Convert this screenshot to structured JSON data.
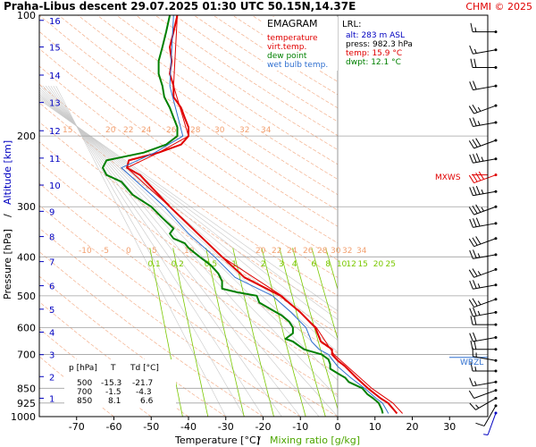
{
  "header": {
    "title": "Praha-Libus  descent  29.07.2025 01:30 UTC  50.15N,14.37E",
    "copyright": "CHMI © 2025"
  },
  "diagram_label": "EMAGRAM",
  "legend": [
    {
      "label": "temperature",
      "color": "#e00000"
    },
    {
      "label": "virt.temp.",
      "color": "#e00000"
    },
    {
      "label": "dew point",
      "color": "#008000"
    },
    {
      "label": "wet bulb temp.",
      "color": "#3070d0"
    }
  ],
  "lrl": {
    "heading": "LRL:",
    "lines": [
      {
        "text": "alt: 283 m ASL",
        "color": "#0000c0"
      },
      {
        "text": "press: 982.3 hPa",
        "color": "#000000"
      },
      {
        "text": "temp: 15.9 °C",
        "color": "#e00000"
      },
      {
        "text": "dwpt: 12.1 °C",
        "color": "#008000"
      }
    ]
  },
  "level_markers": {
    "mxws": "MXWS",
    "wbzl": "WBZL"
  },
  "table": {
    "headers": [
      "p [hPa]",
      "T",
      "Td [°C]"
    ],
    "rows": [
      [
        "500",
        "-15.3",
        "-21.7"
      ],
      [
        "700",
        "-1.5",
        "-4.3"
      ],
      [
        "850",
        "8.1",
        "6.6"
      ]
    ]
  },
  "axis_titles": {
    "x_temperature": "Temperature [°C]",
    "x_separator": "/",
    "x_mixing": "Mixing ratio [g/kg]",
    "y_pressure": "Pressure [hPa]",
    "y_separator": "/",
    "y_altitude": "Altitude [km]"
  },
  "chart_data": {
    "type": "line",
    "title": "Praha-Libus  descent  29.07.2025 01:30 UTC  50.15N,14.37E",
    "xlabel": "Temperature [°C] / Mixing ratio [g/kg]",
    "ylabel": "Pressure [hPa] / Altitude [km]",
    "xlim": [
      -80,
      40
    ],
    "ylim": [
      1000,
      100
    ],
    "y_scale": "log",
    "x_ticks": [
      -70,
      -60,
      -50,
      -40,
      -30,
      -20,
      -10,
      0,
      10,
      20,
      30
    ],
    "pressure_ticks": [
      100,
      200,
      300,
      400,
      500,
      600,
      700,
      850,
      925,
      1000
    ],
    "altitude_ticks": [
      {
        "km": "1",
        "p": 900
      },
      {
        "km": "2",
        "p": 795
      },
      {
        "km": "3",
        "p": 701
      },
      {
        "km": "4",
        "p": 616
      },
      {
        "km": "5",
        "p": 540
      },
      {
        "km": "6",
        "p": 472
      },
      {
        "km": "7",
        "p": 411
      },
      {
        "km": "8",
        "p": 356
      },
      {
        "km": "9",
        "p": 308
      },
      {
        "km": "10",
        "p": 265
      },
      {
        "km": "11",
        "p": 227
      },
      {
        "km": "12",
        "p": 194
      },
      {
        "km": "13",
        "p": 165
      },
      {
        "km": "14",
        "p": 141
      },
      {
        "km": "15",
        "p": 120
      },
      {
        "km": "16",
        "p": 103
      }
    ],
    "dry_adiabat_labels_200": [
      "15",
      "20",
      "22",
      "24",
      "26",
      "28",
      "30",
      "32",
      "34"
    ],
    "dry_adiabat_labels_400": [
      "-10",
      "-5",
      "0",
      "5",
      "10",
      "20",
      "22",
      "24",
      "26",
      "28",
      "30",
      "32",
      "34"
    ],
    "mixing_ratio_labels": [
      "0.1",
      "0.2",
      "0.5",
      "1",
      "2",
      "3",
      "4",
      "6",
      "8",
      "10",
      "12",
      "15",
      "20",
      "25"
    ],
    "series": [
      {
        "name": "temperature",
        "color": "#e00000",
        "points": [
          [
            100,
            -43
          ],
          [
            110,
            -44
          ],
          [
            120,
            -45
          ],
          [
            130,
            -44.5
          ],
          [
            140,
            -45
          ],
          [
            150,
            -44
          ],
          [
            160,
            -44
          ],
          [
            170,
            -42
          ],
          [
            180,
            -41
          ],
          [
            190,
            -40
          ],
          [
            200,
            -40
          ],
          [
            210,
            -42
          ],
          [
            220,
            -48
          ],
          [
            230,
            -56
          ],
          [
            240,
            -56.5
          ],
          [
            250,
            -53
          ],
          [
            280,
            -48
          ],
          [
            300,
            -45
          ],
          [
            350,
            -37.5
          ],
          [
            400,
            -31
          ],
          [
            450,
            -25
          ],
          [
            500,
            -15.3
          ],
          [
            550,
            -10
          ],
          [
            600,
            -6
          ],
          [
            650,
            -4.5
          ],
          [
            680,
            -1.5
          ],
          [
            700,
            -1.5
          ],
          [
            725,
            0
          ],
          [
            750,
            2
          ],
          [
            800,
            5
          ],
          [
            850,
            8.1
          ],
          [
            900,
            11.5
          ],
          [
            925,
            13.5
          ],
          [
            960,
            15
          ],
          [
            982.3,
            15.9
          ]
        ]
      },
      {
        "name": "virt.temp.",
        "color": "#e00000",
        "points": [
          [
            100,
            -43
          ],
          [
            150,
            -44
          ],
          [
            200,
            -40
          ],
          [
            220,
            -48
          ],
          [
            240,
            -56.5
          ],
          [
            300,
            -45
          ],
          [
            400,
            -31
          ],
          [
            500,
            -15
          ],
          [
            600,
            -5.7
          ],
          [
            700,
            -1
          ],
          [
            850,
            9.1
          ],
          [
            925,
            14.8
          ],
          [
            982.3,
            17.4
          ]
        ]
      },
      {
        "name": "dew point",
        "color": "#008000",
        "points": [
          [
            100,
            -45
          ],
          [
            110,
            -46
          ],
          [
            120,
            -47
          ],
          [
            130,
            -48
          ],
          [
            140,
            -48
          ],
          [
            150,
            -47
          ],
          [
            160,
            -46.5
          ],
          [
            170,
            -45
          ],
          [
            180,
            -44
          ],
          [
            190,
            -43
          ],
          [
            200,
            -43
          ],
          [
            210,
            -46
          ],
          [
            220,
            -52
          ],
          [
            230,
            -62
          ],
          [
            240,
            -63
          ],
          [
            250,
            -62
          ],
          [
            260,
            -58
          ],
          [
            280,
            -55
          ],
          [
            300,
            -50
          ],
          [
            320,
            -47
          ],
          [
            340,
            -44
          ],
          [
            350,
            -45
          ],
          [
            360,
            -44
          ],
          [
            370,
            -41
          ],
          [
            380,
            -40
          ],
          [
            400,
            -37
          ],
          [
            420,
            -34
          ],
          [
            440,
            -32
          ],
          [
            460,
            -31
          ],
          [
            480,
            -31
          ],
          [
            490,
            -27
          ],
          [
            500,
            -21.7
          ],
          [
            520,
            -21
          ],
          [
            540,
            -18
          ],
          [
            560,
            -15
          ],
          [
            580,
            -13
          ],
          [
            600,
            -12
          ],
          [
            620,
            -12
          ],
          [
            640,
            -14
          ],
          [
            650,
            -12
          ],
          [
            660,
            -11
          ],
          [
            670,
            -10
          ],
          [
            680,
            -9
          ],
          [
            700,
            -4.3
          ],
          [
            720,
            -2.5
          ],
          [
            740,
            -2
          ],
          [
            760,
            -2
          ],
          [
            780,
            0
          ],
          [
            800,
            2
          ],
          [
            820,
            3
          ],
          [
            850,
            6.6
          ],
          [
            880,
            8
          ],
          [
            900,
            9.5
          ],
          [
            925,
            11
          ],
          [
            960,
            11.8
          ],
          [
            982.3,
            12.1
          ]
        ]
      },
      {
        "name": "wet bulb temp.",
        "color": "#3070d0",
        "points": [
          [
            100,
            -44
          ],
          [
            150,
            -45
          ],
          [
            200,
            -41.5
          ],
          [
            220,
            -49
          ],
          [
            240,
            -58
          ],
          [
            280,
            -50
          ],
          [
            300,
            -46.5
          ],
          [
            350,
            -40
          ],
          [
            400,
            -33
          ],
          [
            450,
            -27.5
          ],
          [
            500,
            -17.5
          ],
          [
            550,
            -12.5
          ],
          [
            600,
            -8.5
          ],
          [
            650,
            -7
          ],
          [
            680,
            -5
          ],
          [
            700,
            -2.5
          ],
          [
            750,
            0
          ],
          [
            800,
            3.5
          ],
          [
            850,
            7.2
          ],
          [
            900,
            10.3
          ],
          [
            925,
            12
          ],
          [
            960,
            13
          ],
          [
            982.3,
            13.6
          ]
        ]
      }
    ],
    "mixing_ratio_line_color": "#7bc800",
    "dry_adiabat_color": "#f4b08c",
    "moist_adiabat_color": "#c8c8c8",
    "wind_barbs": [
      {
        "p": 980,
        "dir": 200,
        "speed": 5,
        "color": "#0000c0"
      },
      {
        "p": 940,
        "dir": 210,
        "speed": 10
      },
      {
        "p": 900,
        "dir": 240,
        "speed": 15
      },
      {
        "p": 860,
        "dir": 250,
        "speed": 10
      },
      {
        "p": 820,
        "dir": 260,
        "speed": 15
      },
      {
        "p": 770,
        "dir": 270,
        "speed": 15
      },
      {
        "p": 725,
        "dir": 280,
        "speed": 15
      },
      {
        "p": 680,
        "dir": 270,
        "speed": 20
      },
      {
        "p": 635,
        "dir": 260,
        "speed": 20
      },
      {
        "p": 590,
        "dir": 270,
        "speed": 20
      },
      {
        "p": 550,
        "dir": 260,
        "speed": 25
      },
      {
        "p": 510,
        "dir": 250,
        "speed": 25
      },
      {
        "p": 470,
        "dir": 260,
        "speed": 25
      },
      {
        "p": 430,
        "dir": 250,
        "speed": 25
      },
      {
        "p": 395,
        "dir": 260,
        "speed": 25
      },
      {
        "p": 360,
        "dir": 250,
        "speed": 30
      },
      {
        "p": 330,
        "dir": 260,
        "speed": 30
      },
      {
        "p": 300,
        "dir": 250,
        "speed": 35
      },
      {
        "p": 275,
        "dir": 260,
        "speed": 35
      },
      {
        "p": 250,
        "dir": 250,
        "speed": 40,
        "color": "#e00000"
      },
      {
        "p": 228,
        "dir": 260,
        "speed": 35
      },
      {
        "p": 205,
        "dir": 250,
        "speed": 30
      },
      {
        "p": 185,
        "dir": 260,
        "speed": 25
      },
      {
        "p": 168,
        "dir": 250,
        "speed": 25
      },
      {
        "p": 150,
        "dir": 260,
        "speed": 20
      },
      {
        "p": 135,
        "dir": 270,
        "speed": 20
      },
      {
        "p": 122,
        "dir": 260,
        "speed": 15
      },
      {
        "p": 110,
        "dir": 270,
        "speed": 15
      }
    ]
  }
}
